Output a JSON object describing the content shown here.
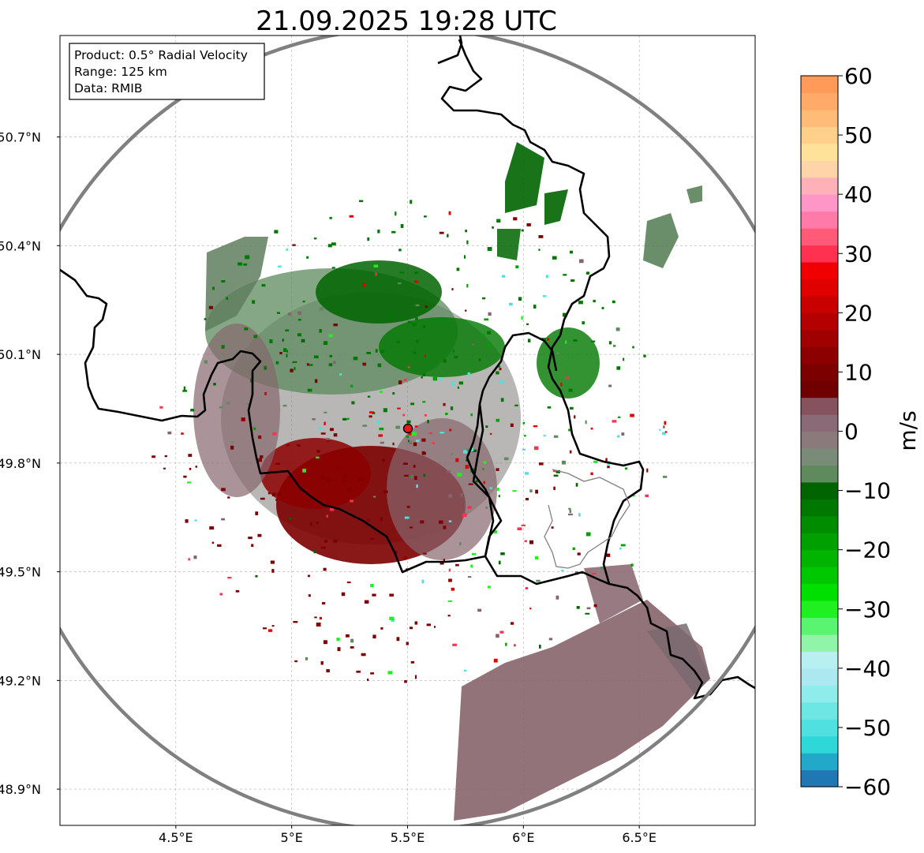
{
  "title": "21.09.2025 19:28 UTC",
  "info": {
    "product": "Product: 0.5° Radial Velocity",
    "range": "Range: 125 km",
    "source": "Data: RMIB"
  },
  "axes": {
    "x_ticks": [
      "4.5°E",
      "5°E",
      "5.5°E",
      "6°E",
      "6.5°E"
    ],
    "y_ticks": [
      "50.7°N",
      "50.4°N",
      "50.1°N",
      "49.8°N",
      "49.5°N",
      "49.2°N",
      "48.9°N"
    ]
  },
  "colorbar": {
    "label": "m/s",
    "ticks": [
      "60",
      "50",
      "40",
      "30",
      "20",
      "10",
      "0",
      "−10",
      "−20",
      "−30",
      "−40",
      "−50",
      "−60"
    ],
    "range": [
      -60,
      60
    ],
    "colors": [
      "#1f77b4",
      "#22a8c8",
      "#2ed8d8",
      "#4fe0df",
      "#6ee6e4",
      "#8eeceb",
      "#ace8ef",
      "#b8f0f2",
      "#90f5a8",
      "#5af570",
      "#20f020",
      "#00e000",
      "#00c800",
      "#00b400",
      "#00a000",
      "#008c00",
      "#007800",
      "#006400",
      "#5e8a5e",
      "#7a8c78",
      "#8a7a7c",
      "#8a6a76",
      "#86525e",
      "#700000",
      "#7c0000",
      "#8c0000",
      "#a00000",
      "#b40000",
      "#c80000",
      "#e00000",
      "#f00000",
      "#ff3050",
      "#ff5a78",
      "#ff7aa8",
      "#ff96c8",
      "#ffb0b8",
      "#ffd4a8",
      "#ffe29a",
      "#ffd08a",
      "#ffbc78",
      "#ffaa68",
      "#ff9a58"
    ]
  },
  "chart_data": {
    "type": "heatmap",
    "title": "21.09.2025 19:28 UTC",
    "xlabel": "",
    "ylabel": "",
    "xlim": [
      4.0,
      7.0
    ],
    "ylim": [
      48.8,
      50.98
    ],
    "x_ticks": [
      4.5,
      5.0,
      5.5,
      6.0,
      6.5
    ],
    "y_ticks": [
      48.9,
      49.2,
      49.5,
      49.8,
      50.1,
      50.4,
      50.7
    ],
    "radar_site": {
      "lon": 5.505,
      "lat": 49.914
    },
    "range_km": 125,
    "value_unit": "m/s",
    "value_range": [
      -60,
      60
    ],
    "echo_regions": [
      {
        "region": "southwest of radar",
        "velocity_ms": 15
      },
      {
        "region": "north of radar",
        "velocity_ms": -10
      },
      {
        "region": "northwest near-zero",
        "velocity_ms": -3
      },
      {
        "region": "southeast band",
        "velocity_ms": 4
      },
      {
        "region": "west-northwest",
        "velocity_ms": -4
      },
      {
        "region": "far north cells",
        "velocity_ms": -10
      }
    ]
  }
}
